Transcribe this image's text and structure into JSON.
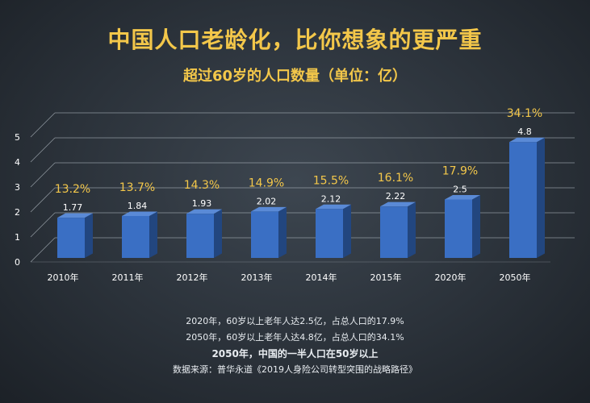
{
  "title": "中国人口老龄化，比你想象的更严重",
  "subtitle": "超过60岁的人口数量（单位：亿）",
  "chart_data": {
    "type": "bar",
    "categories": [
      "2010年",
      "2011年",
      "2012年",
      "2013年",
      "2014年",
      "2015年",
      "2020年",
      "2050年"
    ],
    "values": [
      1.77,
      1.84,
      1.93,
      2.02,
      2.12,
      2.22,
      2.5,
      4.8
    ],
    "value_labels": [
      "1.77",
      "1.84",
      "1.93",
      "2.02",
      "2.12",
      "2.22",
      "2.5",
      "4.8"
    ],
    "percent_labels": [
      "13.2%",
      "13.7%",
      "14.3%",
      "14.9%",
      "15.5%",
      "16.1%",
      "17.9%",
      "34.1%"
    ],
    "yticks": [
      "0",
      "1",
      "2",
      "3",
      "4",
      "5"
    ],
    "ylim": [
      0,
      5
    ],
    "grid": true,
    "colors": {
      "bar": "#3a6fc4",
      "bar_side": "#22467f",
      "bar_top": "#5a8ad6",
      "percent": "#f3c74a",
      "text": "#ffffff",
      "grid": "#b8c0c8"
    }
  },
  "notes": {
    "line1": "2020年，60岁以上老年人达2.5亿，占总人口的17.9%",
    "line2": "2050年，60岁以上老年人达4.8亿，占总人口的34.1%",
    "line3": "2050年，中国的一半人口在50岁以上",
    "source": "数据来源：普华永道《2019人身险公司转型突围的战略路径》"
  }
}
